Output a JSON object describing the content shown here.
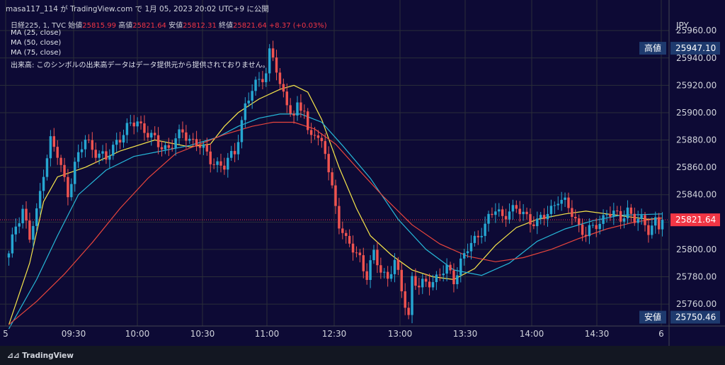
{
  "header": {
    "publisher_line": "masa117_114 が TradingView.com で 1月 05, 2023 20:02 UTC+9 に公開"
  },
  "legend": {
    "symbol_line": "日経225, 1, TVC",
    "open_label": "始値",
    "open_value": "25815.99",
    "high_label": "高値",
    "high_value": "25821.64",
    "low_label": "安値",
    "low_value": "25812.31",
    "close_label": "終値",
    "close_value": "25821.64",
    "change": "+8.37 (+0.03%)",
    "ma25": "MA (25, close)",
    "ma50": "MA (50, close)",
    "ma75": "MA (75, close)",
    "volume_note": "出来高: このシンボルの出来高データはデータ提供元から提供されておりません。"
  },
  "footer": {
    "brand": "TradingView"
  },
  "colors": {
    "ma25": "#f7e64b",
    "ma50": "#26b8d8",
    "ma75": "#e8453c",
    "candle_up": "#26a6d1",
    "candle_down": "#ef5350",
    "last_price_line": "#f23645"
  },
  "chart_data": {
    "type": "candlestick",
    "currency": "JPY",
    "y_ticks": [
      25760,
      25780,
      25800,
      25820,
      25840,
      25860,
      25880,
      25900,
      25920,
      25940,
      25960
    ],
    "y_tick_labels": [
      "25760.00",
      "25780.00",
      "25800.00",
      "25820.00",
      "25840.00",
      "25860.00",
      "25880.00",
      "25900.00",
      "25920.00",
      "25940.00",
      "25960.00"
    ],
    "ylim": [
      25744,
      25972
    ],
    "x_ticks": [
      "5",
      "09:30",
      "10:00",
      "10:30",
      "11:00",
      "12:30",
      "13:00",
      "13:30",
      "14:00",
      "14:30",
      "6"
    ],
    "price_labels": {
      "high": {
        "label": "高値",
        "value": 25947.1,
        "text": "25947.10"
      },
      "low": {
        "label": "安値",
        "value": 25750.46,
        "text": "25750.46"
      },
      "last": {
        "value": 25821.64,
        "text": "25821.64"
      }
    },
    "close_path": [
      [
        0,
        25795
      ],
      [
        2,
        25818
      ],
      [
        4,
        25830
      ],
      [
        6,
        25808
      ],
      [
        8,
        25826
      ],
      [
        10,
        25858
      ],
      [
        12,
        25880
      ],
      [
        14,
        25868
      ],
      [
        17,
        25842
      ],
      [
        19,
        25862
      ],
      [
        22,
        25880
      ],
      [
        25,
        25872
      ],
      [
        28,
        25865
      ],
      [
        31,
        25880
      ],
      [
        34,
        25888
      ],
      [
        37,
        25894
      ],
      [
        40,
        25885
      ],
      [
        43,
        25876
      ],
      [
        46,
        25875
      ],
      [
        50,
        25885
      ],
      [
        54,
        25878
      ],
      [
        58,
        25866
      ],
      [
        62,
        25860
      ],
      [
        65,
        25872
      ],
      [
        68,
        25905
      ],
      [
        70,
        25915
      ],
      [
        72,
        25925
      ],
      [
        74,
        25930
      ],
      [
        75,
        25944
      ],
      [
        76,
        25940
      ],
      [
        77,
        25930
      ],
      [
        78,
        25918
      ],
      [
        80,
        25910
      ],
      [
        82,
        25895
      ],
      [
        83,
        25905
      ],
      [
        85,
        25900
      ],
      [
        86,
        25885
      ],
      [
        88,
        25888
      ],
      [
        89,
        25880
      ],
      [
        91,
        25870
      ],
      [
        93,
        25845
      ],
      [
        95,
        25820
      ],
      [
        97,
        25805
      ],
      [
        99,
        25800
      ],
      [
        101,
        25795
      ],
      [
        103,
        25780
      ],
      [
        105,
        25796
      ],
      [
        107,
        25785
      ],
      [
        109,
        25780
      ],
      [
        111,
        25790
      ],
      [
        113,
        25770
      ],
      [
        115,
        25752
      ],
      [
        116,
        25780
      ],
      [
        118,
        25772
      ],
      [
        120,
        25775
      ],
      [
        122,
        25778
      ],
      [
        124,
        25782
      ],
      [
        126,
        25785
      ],
      [
        128,
        25778
      ],
      [
        130,
        25792
      ],
      [
        132,
        25800
      ],
      [
        134,
        25806
      ],
      [
        136,
        25815
      ],
      [
        138,
        25823
      ],
      [
        140,
        25828
      ],
      [
        142,
        25824
      ],
      [
        144,
        25830
      ],
      [
        146,
        25828
      ],
      [
        148,
        25826
      ],
      [
        150,
        25822
      ],
      [
        152,
        25820
      ],
      [
        154,
        25823
      ],
      [
        156,
        25830
      ],
      [
        158,
        25838
      ],
      [
        160,
        25833
      ],
      [
        162,
        25826
      ],
      [
        164,
        25818
      ],
      [
        166,
        25811
      ],
      [
        168,
        25815
      ],
      [
        170,
        25820
      ],
      [
        172,
        25828
      ],
      [
        174,
        25825
      ],
      [
        176,
        25822
      ],
      [
        178,
        25830
      ],
      [
        180,
        25822
      ],
      [
        182,
        25820
      ],
      [
        184,
        25815
      ],
      [
        186,
        25822
      ],
      [
        187,
        25816
      ],
      [
        188,
        25821.64
      ]
    ],
    "series": [
      {
        "name": "MA (25, close)",
        "color": "#f7e64b",
        "points": [
          [
            0,
            25745
          ],
          [
            6,
            25790
          ],
          [
            10,
            25835
          ],
          [
            14,
            25853
          ],
          [
            22,
            25860
          ],
          [
            32,
            25872
          ],
          [
            42,
            25880
          ],
          [
            52,
            25875
          ],
          [
            58,
            25877
          ],
          [
            62,
            25890
          ],
          [
            66,
            25900
          ],
          [
            72,
            25910
          ],
          [
            78,
            25917
          ],
          [
            82,
            25920
          ],
          [
            86,
            25915
          ],
          [
            90,
            25895
          ],
          [
            95,
            25860
          ],
          [
            100,
            25830
          ],
          [
            104,
            25810
          ],
          [
            110,
            25796
          ],
          [
            116,
            25785
          ],
          [
            122,
            25780
          ],
          [
            128,
            25778
          ],
          [
            134,
            25786
          ],
          [
            140,
            25803
          ],
          [
            146,
            25816
          ],
          [
            152,
            25822
          ],
          [
            160,
            25826
          ],
          [
            166,
            25828
          ],
          [
            172,
            25826
          ],
          [
            178,
            25824
          ],
          [
            184,
            25822
          ],
          [
            188,
            25823
          ]
        ]
      },
      {
        "name": "MA (50, close)",
        "color": "#26b8d8",
        "points": [
          [
            0,
            25742
          ],
          [
            8,
            25778
          ],
          [
            14,
            25810
          ],
          [
            20,
            25840
          ],
          [
            28,
            25858
          ],
          [
            36,
            25868
          ],
          [
            44,
            25872
          ],
          [
            52,
            25876
          ],
          [
            60,
            25882
          ],
          [
            66,
            25890
          ],
          [
            72,
            25896
          ],
          [
            78,
            25899
          ],
          [
            84,
            25899
          ],
          [
            90,
            25893
          ],
          [
            96,
            25876
          ],
          [
            104,
            25852
          ],
          [
            112,
            25822
          ],
          [
            120,
            25800
          ],
          [
            128,
            25785
          ],
          [
            136,
            25781
          ],
          [
            144,
            25790
          ],
          [
            152,
            25806
          ],
          [
            160,
            25815
          ],
          [
            168,
            25821
          ],
          [
            176,
            25825
          ],
          [
            188,
            25826
          ]
        ]
      },
      {
        "name": "MA (75, close)",
        "color": "#e8453c",
        "points": [
          [
            0,
            25745
          ],
          [
            8,
            25762
          ],
          [
            16,
            25782
          ],
          [
            24,
            25805
          ],
          [
            32,
            25830
          ],
          [
            40,
            25852
          ],
          [
            48,
            25870
          ],
          [
            56,
            25878
          ],
          [
            62,
            25884
          ],
          [
            70,
            25890
          ],
          [
            76,
            25893
          ],
          [
            82,
            25893
          ],
          [
            88,
            25888
          ],
          [
            94,
            25877
          ],
          [
            100,
            25860
          ],
          [
            108,
            25838
          ],
          [
            116,
            25818
          ],
          [
            124,
            25804
          ],
          [
            132,
            25795
          ],
          [
            140,
            25791
          ],
          [
            148,
            25794
          ],
          [
            156,
            25800
          ],
          [
            164,
            25808
          ],
          [
            172,
            25815
          ],
          [
            180,
            25820
          ],
          [
            188,
            25823
          ]
        ]
      }
    ]
  }
}
